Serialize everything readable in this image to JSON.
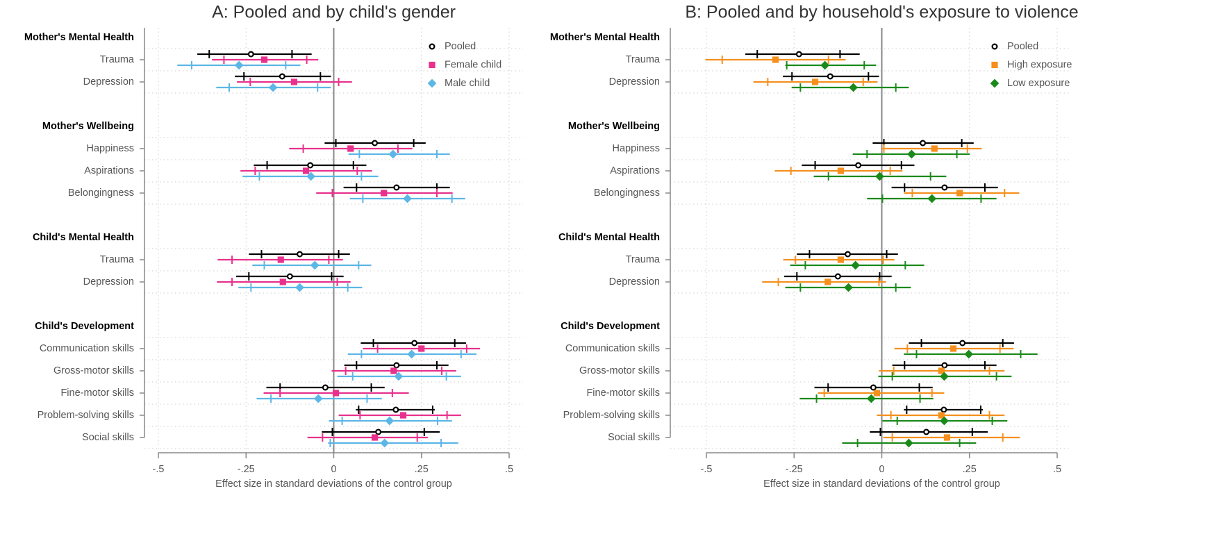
{
  "chart_data": [
    {
      "type": "forest",
      "title": "A: Pooled and by child's gender",
      "xlabel": "Effect size in standard deviations of the control group",
      "xlim": [
        -0.5,
        0.5
      ],
      "xticks": [
        {
          "value": -0.5,
          "label": "-.5"
        },
        {
          "value": -0.25,
          "label": "-.25"
        },
        0,
        {
          "value": 0.25,
          "label": ".25"
        },
        {
          "value": 0.5,
          "label": ".5"
        }
      ],
      "grid": true,
      "legend": "upper right",
      "groups": [
        {
          "name": "Mother's Mental Health",
          "categories": [
            "Trauma",
            "Depression"
          ]
        },
        {
          "name": "Mother's Wellbeing",
          "categories": [
            "Happiness",
            "Aspirations",
            "Belongingness"
          ]
        },
        {
          "name": "Child's Mental Health",
          "categories": [
            "Trauma",
            "Depression"
          ]
        },
        {
          "name": "Child's Development",
          "categories": [
            "Communication skills",
            "Gross-motor skills",
            "Fine-motor skills",
            "Problem-solving skills",
            "Social skills"
          ]
        }
      ],
      "series": [
        {
          "name": "Pooled",
          "color": "#000000",
          "marker": "circle",
          "values": [
            -0.236,
            -0.147,
            0.117,
            -0.067,
            0.179,
            -0.097,
            -0.125,
            0.23,
            0.179,
            -0.024,
            0.177,
            0.127
          ],
          "ci90": [
            [
              -0.355,
              -0.119
            ],
            [
              -0.256,
              -0.038
            ],
            [
              0.006,
              0.228
            ],
            [
              -0.19,
              0.056
            ],
            [
              0.065,
              0.294
            ],
            [
              -0.206,
              0.014
            ],
            [
              -0.242,
              -0.006
            ],
            [
              0.113,
              0.345
            ],
            [
              0.065,
              0.294
            ],
            [
              -0.153,
              0.107
            ],
            [
              0.071,
              0.282
            ],
            [
              -0.004,
              0.258
            ]
          ],
          "ci95": [
            [
              -0.389,
              -0.063
            ],
            [
              -0.282,
              -0.008
            ],
            [
              -0.026,
              0.262
            ],
            [
              -0.228,
              0.093
            ],
            [
              0.028,
              0.331
            ],
            [
              -0.242,
              0.046
            ],
            [
              -0.278,
              0.028
            ],
            [
              0.077,
              0.377
            ],
            [
              0.03,
              0.327
            ],
            [
              -0.192,
              0.145
            ],
            [
              0.063,
              0.288
            ],
            [
              -0.034,
              0.302
            ]
          ]
        },
        {
          "name": "Female child",
          "color": "#e8318c",
          "marker": "square",
          "values": [
            -0.198,
            -0.113,
            0.048,
            -0.079,
            0.143,
            -0.151,
            -0.145,
            0.25,
            0.171,
            0.006,
            0.198,
            0.117
          ],
          "ci90": [
            [
              -0.313,
              -0.077
            ],
            [
              -0.238,
              0.014
            ],
            [
              -0.087,
              0.183
            ],
            [
              -0.224,
              0.067
            ],
            [
              -0.004,
              0.294
            ],
            [
              -0.29,
              -0.014
            ],
            [
              -0.29,
              0.01
            ],
            [
              0.125,
              0.379
            ],
            [
              0.034,
              0.308
            ],
            [
              -0.153,
              0.167
            ],
            [
              0.075,
              0.323
            ],
            [
              -0.032,
              0.238
            ]
          ],
          "ci95": [
            [
              -0.347,
              -0.044
            ],
            [
              -0.276,
              0.052
            ],
            [
              -0.127,
              0.224
            ],
            [
              -0.266,
              0.109
            ],
            [
              -0.05,
              0.339
            ],
            [
              -0.331,
              0.026
            ],
            [
              -0.333,
              0.048
            ],
            [
              0.083,
              0.417
            ],
            [
              -0.006,
              0.349
            ],
            [
              -0.2,
              0.214
            ],
            [
              0.014,
              0.363
            ],
            [
              -0.075,
              0.268
            ]
          ]
        },
        {
          "name": "Male child",
          "color": "#5cb6e6",
          "marker": "diamond",
          "values": [
            -0.27,
            -0.173,
            0.169,
            -0.065,
            0.21,
            -0.054,
            -0.097,
            0.222,
            0.185,
            -0.044,
            0.159,
            0.145
          ],
          "ci90": [
            [
              -0.405,
              -0.137
            ],
            [
              -0.298,
              -0.046
            ],
            [
              0.073,
              0.294
            ],
            [
              -0.212,
              0.079
            ],
            [
              0.083,
              0.337
            ],
            [
              -0.198,
              0.071
            ],
            [
              -0.236,
              0.04
            ],
            [
              0.079,
              0.363
            ],
            [
              0.054,
              0.321
            ],
            [
              -0.179,
              0.095
            ],
            [
              0.024,
              0.296
            ],
            [
              -0.01,
              0.306
            ]
          ],
          "ci95": [
            [
              -0.446,
              -0.095
            ],
            [
              -0.335,
              -0.008
            ],
            [
              0.042,
              0.331
            ],
            [
              -0.26,
              0.127
            ],
            [
              0.046,
              0.375
            ],
            [
              -0.232,
              0.107
            ],
            [
              -0.272,
              0.081
            ],
            [
              0.04,
              0.407
            ],
            [
              0.01,
              0.363
            ],
            [
              -0.22,
              0.137
            ],
            [
              -0.014,
              0.337
            ],
            [
              -0.016,
              0.355
            ]
          ]
        }
      ]
    },
    {
      "type": "forest",
      "title": "B: Pooled and by household's exposure to violence",
      "xlabel": "Effect size in standard deviations of the control group",
      "xlim": [
        -0.5,
        0.5
      ],
      "xticks": [
        {
          "value": -0.5,
          "label": "-.5"
        },
        {
          "value": -0.25,
          "label": "-.25"
        },
        0,
        {
          "value": 0.25,
          "label": ".25"
        },
        {
          "value": 0.5,
          "label": ".5"
        }
      ],
      "grid": true,
      "legend": "upper right",
      "groups": [
        {
          "name": "Mother's Mental Health",
          "categories": [
            "Trauma",
            "Depression"
          ]
        },
        {
          "name": "Mother's Wellbeing",
          "categories": [
            "Happiness",
            "Aspirations",
            "Belongingness"
          ]
        },
        {
          "name": "Child's Mental Health",
          "categories": [
            "Trauma",
            "Depression"
          ]
        },
        {
          "name": "Child's Development",
          "categories": [
            "Communication skills",
            "Gross-motor skills",
            "Fine-motor skills",
            "Problem-solving skills",
            "Social skills"
          ]
        }
      ],
      "series": [
        {
          "name": "Pooled",
          "color": "#000000",
          "marker": "circle",
          "values": [
            -0.236,
            -0.147,
            0.117,
            -0.067,
            0.179,
            -0.097,
            -0.125,
            0.23,
            0.179,
            -0.024,
            0.177,
            0.127
          ],
          "ci90": [
            [
              -0.355,
              -0.119
            ],
            [
              -0.256,
              -0.038
            ],
            [
              0.006,
              0.228
            ],
            [
              -0.19,
              0.056
            ],
            [
              0.065,
              0.294
            ],
            [
              -0.206,
              0.014
            ],
            [
              -0.242,
              -0.006
            ],
            [
              0.113,
              0.345
            ],
            [
              0.065,
              0.294
            ],
            [
              -0.153,
              0.107
            ],
            [
              0.071,
              0.282
            ],
            [
              -0.004,
              0.258
            ]
          ],
          "ci95": [
            [
              -0.389,
              -0.063
            ],
            [
              -0.282,
              -0.008
            ],
            [
              -0.026,
              0.262
            ],
            [
              -0.228,
              0.093
            ],
            [
              0.028,
              0.331
            ],
            [
              -0.242,
              0.046
            ],
            [
              -0.278,
              0.028
            ],
            [
              0.077,
              0.377
            ],
            [
              0.03,
              0.327
            ],
            [
              -0.192,
              0.145
            ],
            [
              0.063,
              0.288
            ],
            [
              -0.034,
              0.302
            ]
          ]
        },
        {
          "name": "High exposure",
          "color": "#f5901e",
          "marker": "square",
          "values": [
            -0.303,
            -0.19,
            0.15,
            -0.117,
            0.222,
            -0.117,
            -0.154,
            0.204,
            0.17,
            -0.014,
            0.17,
            0.186
          ],
          "ci90": [
            [
              -0.455,
              -0.152
            ],
            [
              -0.325,
              -0.053
            ],
            [
              0.006,
              0.244
            ],
            [
              -0.259,
              0.024
            ],
            [
              0.087,
              0.35
            ],
            [
              -0.246,
              0.004
            ],
            [
              -0.295,
              -0.008
            ],
            [
              0.073,
              0.337
            ],
            [
              0.034,
              0.307
            ],
            [
              -0.164,
              0.143
            ],
            [
              0.026,
              0.307
            ],
            [
              0.03,
              0.345
            ]
          ],
          "ci95": [
            [
              -0.503,
              -0.103
            ],
            [
              -0.366,
              -0.012
            ],
            [
              0,
              0.285
            ],
            [
              -0.305,
              0.059
            ],
            [
              0.063,
              0.392
            ],
            [
              -0.281,
              0.036
            ],
            [
              -0.341,
              0.012
            ],
            [
              0.036,
              0.376
            ],
            [
              -0.008,
              0.35
            ],
            [
              -0.182,
              0.178
            ],
            [
              -0.014,
              0.35
            ],
            [
              0.004,
              0.394
            ]
          ]
        },
        {
          "name": "Low exposure",
          "color": "#1a8a1a",
          "marker": "diamond",
          "values": [
            -0.162,
            -0.081,
            0.085,
            -0.006,
            0.143,
            -0.075,
            -0.095,
            0.248,
            0.178,
            -0.03,
            0.178,
            0.077
          ],
          "ci90": [
            [
              -0.271,
              -0.05
            ],
            [
              -0.232,
              0.04
            ],
            [
              -0.042,
              0.214
            ],
            [
              -0.152,
              0.139
            ],
            [
              0.002,
              0.283
            ],
            [
              -0.218,
              0.067
            ],
            [
              -0.232,
              0.04
            ],
            [
              0.099,
              0.396
            ],
            [
              0.03,
              0.327
            ],
            [
              -0.186,
              0.109
            ],
            [
              0.044,
              0.315
            ],
            [
              -0.069,
              0.222
            ]
          ],
          "ci95": [
            [
              -0.275,
              -0.016
            ],
            [
              -0.257,
              0.077
            ],
            [
              -0.083,
              0.251
            ],
            [
              -0.194,
              0.184
            ],
            [
              -0.042,
              0.327
            ],
            [
              -0.261,
              0.121
            ],
            [
              -0.275,
              0.083
            ],
            [
              0.063,
              0.444
            ],
            [
              -0.01,
              0.37
            ],
            [
              -0.234,
              0.147
            ],
            [
              0.002,
              0.358
            ],
            [
              -0.113,
              0.269
            ]
          ]
        }
      ]
    }
  ]
}
